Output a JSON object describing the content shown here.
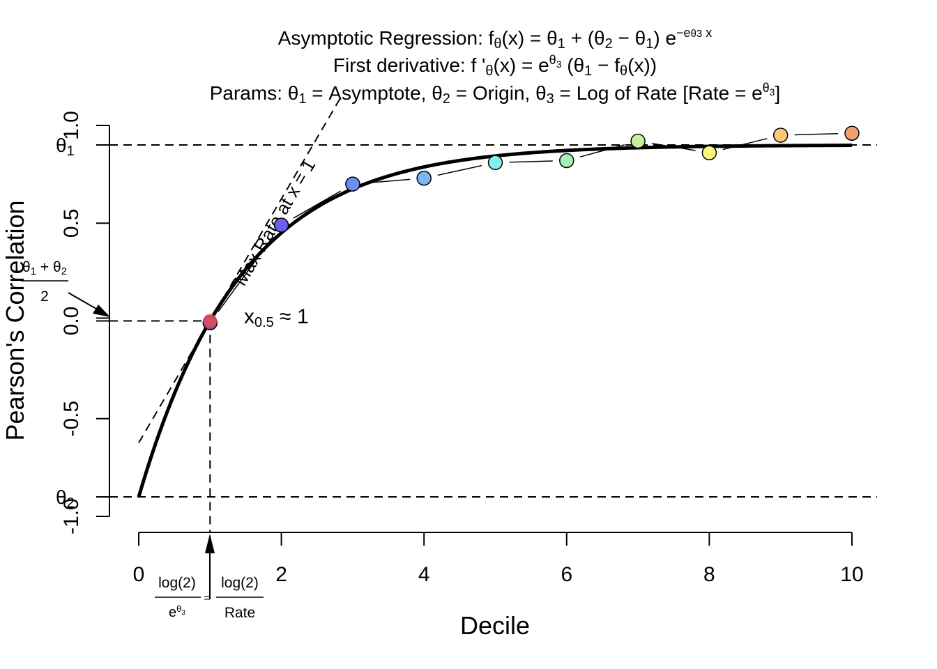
{
  "title": {
    "line1_prefix": "Asymptotic Regression: f",
    "line1_sub_theta": "θ",
    "line1_mid": "(x) = θ",
    "line1_sub1": "1",
    "line1_plus": " + (θ",
    "line1_sub2": "2",
    "line1_minus": " − θ",
    "line1_sub1b": "1",
    "line1_close": ") e",
    "line1_sup": "−e",
    "line1_sup2": "θ3",
    "line1_sup_x": " x",
    "line2_prefix": "First derivative: f '",
    "line2_sub_theta": "θ",
    "line2_mid": "(x) = e",
    "line2_sup": "θ",
    "line2_sup_sub": "3",
    "line2_rest": " (θ",
    "line2_sub1": "1",
    "line2_rest2": " − f",
    "line2_sub_theta2": "θ",
    "line2_end": "(x))",
    "line3_prefix": "Params: θ",
    "line3_s1": "1",
    "line3_a": " = Asymptote, θ",
    "line3_s2": "2",
    "line3_b": " = Origin, θ",
    "line3_s3": "3",
    "line3_c": " = Log of Rate [Rate = e",
    "line3_sup": "θ",
    "line3_sup_sub": "3",
    "line3_end": "]"
  },
  "chart_data": {
    "type": "scatter",
    "xlabel": "Decile",
    "ylabel": "Pearson's Correlation",
    "xlim": [
      0,
      10
    ],
    "ylim": [
      -1.0,
      1.0
    ],
    "x_ticks": [
      "0",
      "2",
      "4",
      "6",
      "8",
      "10"
    ],
    "x_tick_values": [
      0,
      2,
      4,
      6,
      8,
      10
    ],
    "y_ticks": [
      "-1.0",
      "-0.5",
      "0.0",
      "0.5",
      "1.0"
    ],
    "y_tick_values": [
      -1.0,
      -0.5,
      0.0,
      0.5,
      1.0
    ],
    "grid": false,
    "theta1": 0.9,
    "theta2": -0.9,
    "theta3_log_rate": -0.366,
    "series": [
      {
        "x": [
          1,
          2,
          3,
          4,
          5,
          6,
          7,
          8,
          9,
          10
        ],
        "y": [
          -0.01,
          0.49,
          0.7,
          0.73,
          0.81,
          0.82,
          0.92,
          0.86,
          0.95,
          0.96
        ]
      }
    ],
    "point_colors": [
      "#6a4c93",
      "#6a5df0",
      "#6f8cf5",
      "#7ab6f0",
      "#80f0f0",
      "#a8f0b8",
      "#c8f0a0",
      "#f8f878",
      "#f8c878",
      "#f0a070"
    ],
    "highlight_point": {
      "x": 1,
      "y": 0.0,
      "color": "#e8505a"
    },
    "hlines": [
      {
        "label": "θ",
        "sub": "1",
        "y": 0.9
      },
      {
        "label": "θ",
        "sub": "2",
        "y": -0.9
      }
    ],
    "annotations": {
      "tangent_label": "Max Rate at x = 1",
      "x_half": "x",
      "x_half_sub": "0.5",
      "x_half_rest": " ≈ 1",
      "mid_num": "θ",
      "mid_num_s1": "1",
      "mid_num_plus": " + θ",
      "mid_num_s2": "2",
      "mid_den": "2",
      "bottom_num": "log(2)",
      "bottom_den_e": "e",
      "bottom_den_sup": "θ",
      "bottom_den_sup_sub": "3",
      "bottom_eq": "=",
      "bottom_num2": "log(2)",
      "bottom_den2": "Rate"
    }
  }
}
